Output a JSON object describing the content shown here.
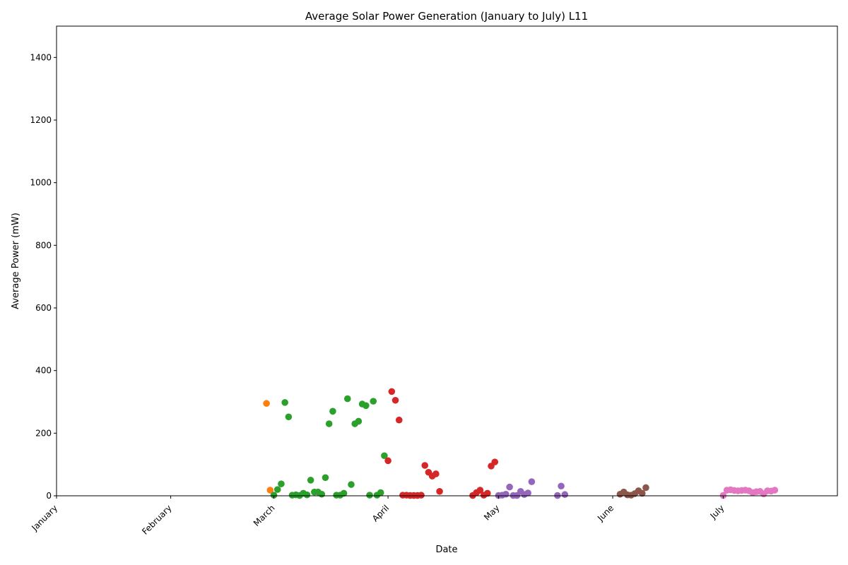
{
  "chart_data": {
    "type": "scatter",
    "title": "Average Solar Power Generation (January to July) L11",
    "xlabel": "Date",
    "ylabel": "Average Power (mW)",
    "xlim": [
      "2023-01-01",
      "2023-08-01"
    ],
    "ylim": [
      0,
      1500
    ],
    "yticks": [
      0,
      200,
      400,
      600,
      800,
      1000,
      1200,
      1400
    ],
    "xticks": [
      {
        "date": "2023-01-01",
        "label": "January"
      },
      {
        "date": "2023-02-01",
        "label": "February"
      },
      {
        "date": "2023-03-01",
        "label": "March"
      },
      {
        "date": "2023-04-01",
        "label": "April"
      },
      {
        "date": "2023-05-01",
        "label": "May"
      },
      {
        "date": "2023-06-01",
        "label": "June"
      },
      {
        "date": "2023-07-01",
        "label": "July"
      }
    ],
    "grid": false,
    "series": [
      {
        "color": "#ff7f0e",
        "points": [
          [
            "2023-02-27",
            295
          ],
          [
            "2023-02-28",
            18
          ]
        ]
      },
      {
        "color": "#2ca02c",
        "points": [
          [
            "2023-03-01",
            2
          ],
          [
            "2023-03-02",
            20
          ],
          [
            "2023-03-03",
            38
          ],
          [
            "2023-03-04",
            298
          ],
          [
            "2023-03-05",
            252
          ],
          [
            "2023-03-06",
            2
          ],
          [
            "2023-03-07",
            3
          ],
          [
            "2023-03-08",
            1
          ],
          [
            "2023-03-09",
            8
          ],
          [
            "2023-03-10",
            3
          ],
          [
            "2023-03-11",
            50
          ],
          [
            "2023-03-12",
            12
          ],
          [
            "2023-03-13",
            12
          ],
          [
            "2023-03-14",
            5
          ],
          [
            "2023-03-15",
            58
          ],
          [
            "2023-03-16",
            230
          ],
          [
            "2023-03-17",
            270
          ],
          [
            "2023-03-18",
            2
          ],
          [
            "2023-03-19",
            2
          ],
          [
            "2023-03-20",
            8
          ],
          [
            "2023-03-21",
            310
          ],
          [
            "2023-03-22",
            36
          ],
          [
            "2023-03-23",
            230
          ],
          [
            "2023-03-24",
            238
          ],
          [
            "2023-03-25",
            293
          ],
          [
            "2023-03-26",
            288
          ],
          [
            "2023-03-27",
            2
          ],
          [
            "2023-03-28",
            302
          ],
          [
            "2023-03-29",
            2
          ],
          [
            "2023-03-30",
            10
          ],
          [
            "2023-03-31",
            128
          ]
        ]
      },
      {
        "color": "#d62728",
        "points": [
          [
            "2023-04-01",
            112
          ],
          [
            "2023-04-02",
            333
          ],
          [
            "2023-04-03",
            305
          ],
          [
            "2023-04-04",
            242
          ],
          [
            "2023-04-05",
            2
          ],
          [
            "2023-04-06",
            2
          ],
          [
            "2023-04-07",
            1
          ],
          [
            "2023-04-08",
            1
          ],
          [
            "2023-04-09",
            1
          ],
          [
            "2023-04-10",
            2
          ],
          [
            "2023-04-11",
            97
          ],
          [
            "2023-04-12",
            75
          ],
          [
            "2023-04-13",
            63
          ],
          [
            "2023-04-14",
            70
          ],
          [
            "2023-04-15",
            14
          ],
          [
            "2023-04-24",
            1
          ],
          [
            "2023-04-25",
            10
          ],
          [
            "2023-04-26",
            18
          ],
          [
            "2023-04-27",
            2
          ],
          [
            "2023-04-28",
            8
          ],
          [
            "2023-04-29",
            95
          ],
          [
            "2023-04-30",
            108
          ]
        ]
      },
      {
        "color": "#9467bd",
        "points": [
          [
            "2023-05-01",
            1
          ],
          [
            "2023-05-02",
            2
          ],
          [
            "2023-05-03",
            5
          ],
          [
            "2023-05-04",
            28
          ],
          [
            "2023-05-05",
            1
          ],
          [
            "2023-05-06",
            1
          ],
          [
            "2023-05-07",
            14
          ],
          [
            "2023-05-08",
            4
          ],
          [
            "2023-05-09",
            9
          ],
          [
            "2023-05-10",
            45
          ],
          [
            "2023-05-17",
            1
          ],
          [
            "2023-05-18",
            31
          ],
          [
            "2023-05-19",
            4
          ]
        ]
      },
      {
        "color": "#8c564b",
        "points": [
          [
            "2023-06-03",
            5
          ],
          [
            "2023-06-04",
            12
          ],
          [
            "2023-06-05",
            3
          ],
          [
            "2023-06-06",
            2
          ],
          [
            "2023-06-07",
            7
          ],
          [
            "2023-06-08",
            16
          ],
          [
            "2023-06-09",
            8
          ],
          [
            "2023-06-10",
            26
          ]
        ]
      },
      {
        "color": "#e377c2",
        "points": [
          [
            "2023-07-01",
            1
          ],
          [
            "2023-07-02",
            18
          ],
          [
            "2023-07-03",
            19
          ],
          [
            "2023-07-04",
            17
          ],
          [
            "2023-07-05",
            16
          ],
          [
            "2023-07-06",
            17
          ],
          [
            "2023-07-07",
            18
          ],
          [
            "2023-07-08",
            16
          ],
          [
            "2023-07-09",
            10
          ],
          [
            "2023-07-10",
            13
          ],
          [
            "2023-07-11",
            14
          ],
          [
            "2023-07-12",
            6
          ],
          [
            "2023-07-13",
            16
          ],
          [
            "2023-07-14",
            15
          ],
          [
            "2023-07-15",
            18
          ]
        ]
      }
    ]
  }
}
